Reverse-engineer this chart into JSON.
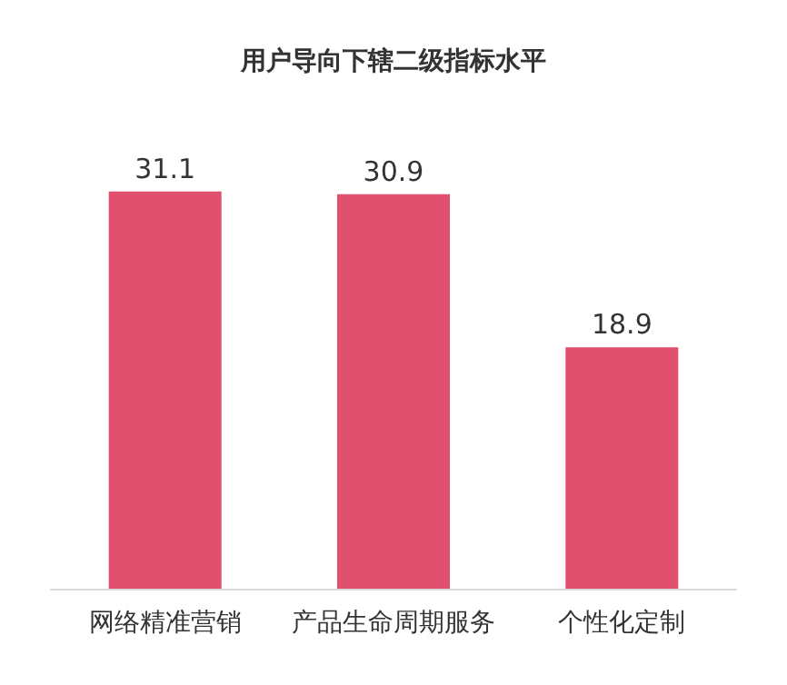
{
  "chart_data": {
    "type": "bar",
    "title": "用户导向下辖二级指标水平",
    "categories": [
      "网络精准营销",
      "产品生命周期服务",
      "个性化定制"
    ],
    "values": [
      31.1,
      30.9,
      18.9
    ],
    "color": "#e2506f",
    "data_labels": true
  }
}
